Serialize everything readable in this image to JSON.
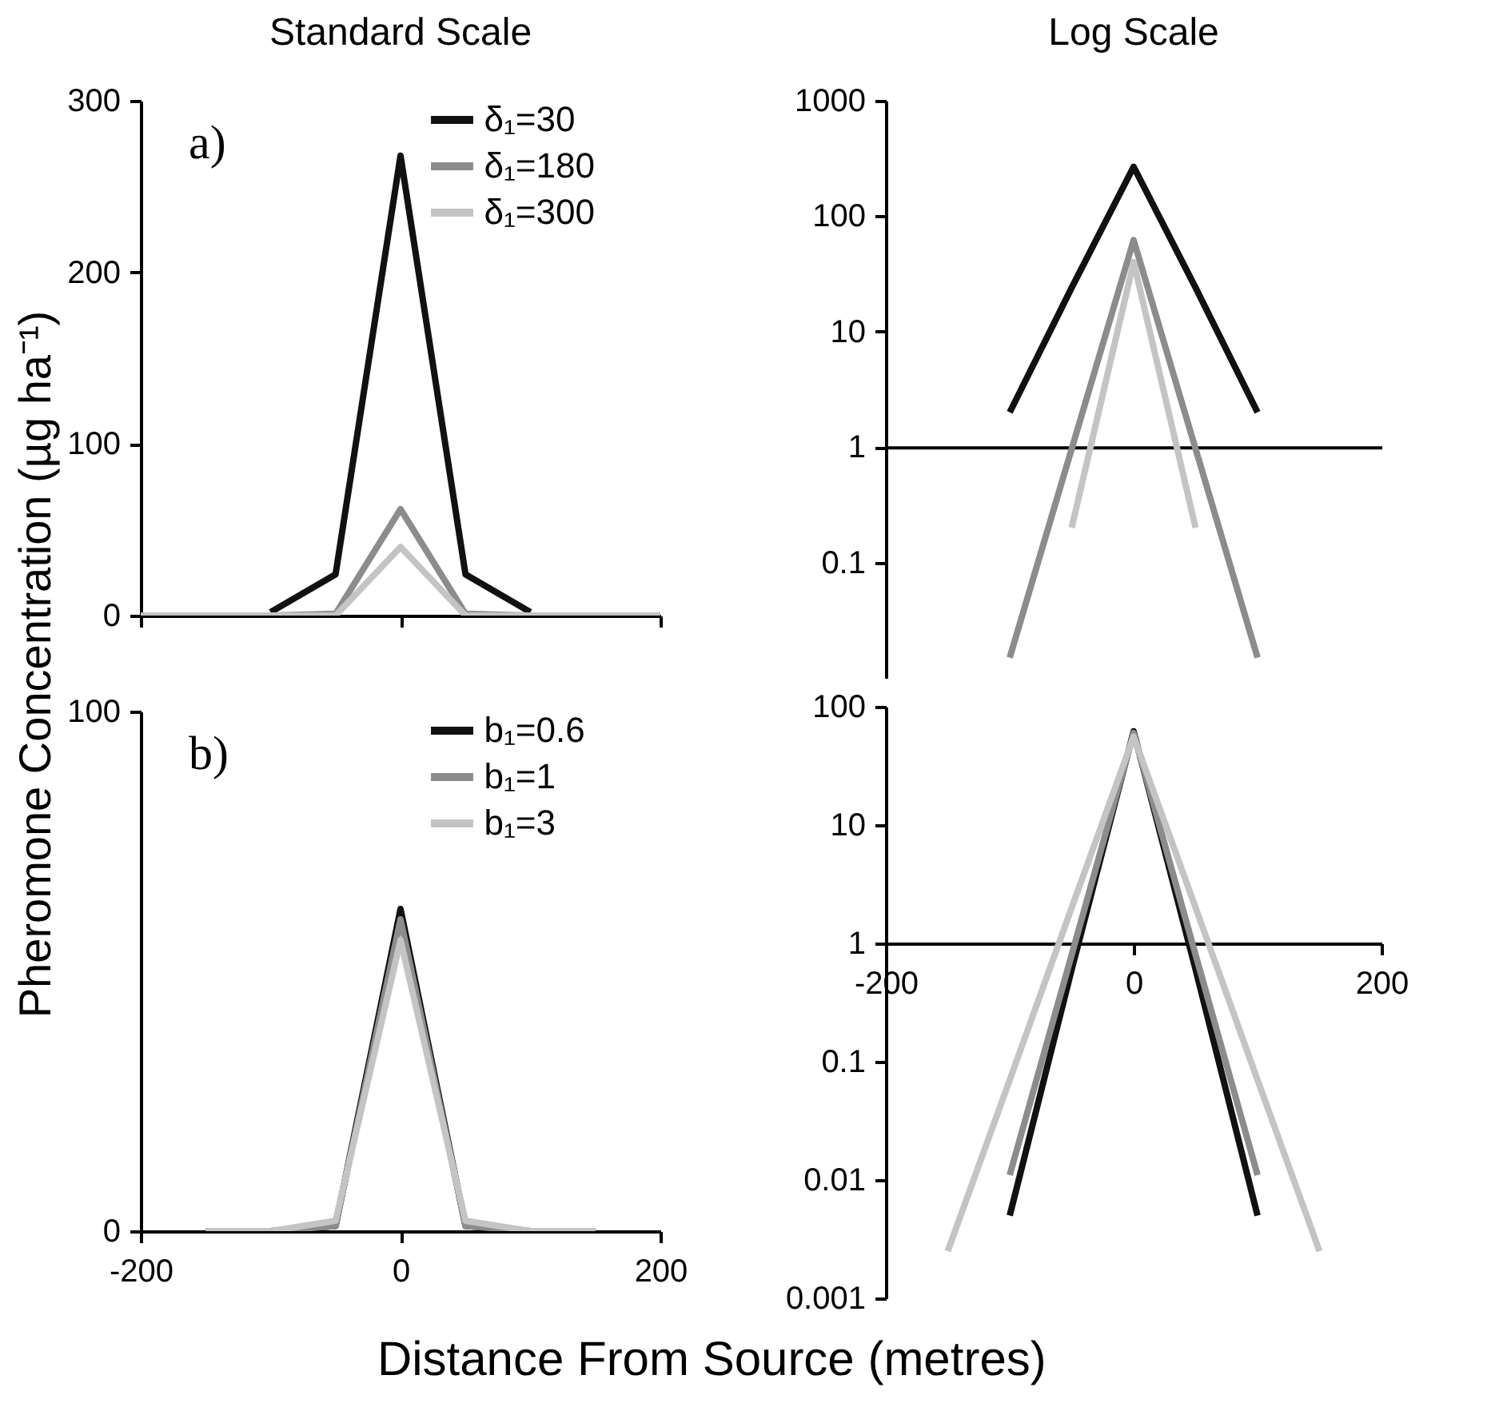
{
  "chart_data": [
    {
      "type": "line",
      "title": "Standard Scale",
      "annotations": [
        "a)"
      ],
      "xlim": [
        -200,
        200
      ],
      "xticks": [
        -200,
        0,
        200
      ],
      "ylim": [
        0,
        300
      ],
      "yticks": [
        0,
        100,
        200,
        300
      ],
      "tick_labels": "y",
      "legend": "top right",
      "series": [
        {
          "name": "δ₁=30",
          "color": "#111111",
          "x": [
            -100,
            -50,
            0,
            50,
            100
          ],
          "values": [
            2,
            24,
            268,
            24,
            2
          ]
        },
        {
          "name": "δ₁=180",
          "color": "#8c8c8c",
          "x": [
            -200,
            -100,
            -50,
            0,
            50,
            100,
            200
          ],
          "values": [
            0,
            0,
            1,
            62,
            1,
            0,
            0
          ]
        },
        {
          "name": "δ₁=300",
          "color": "#c4c4c4",
          "x": [
            -200,
            -50,
            0,
            50,
            200
          ],
          "values": [
            0,
            0,
            40,
            0,
            0
          ]
        }
      ]
    },
    {
      "type": "line",
      "title": "Log Scale",
      "log": true,
      "xlim": [
        -200,
        200
      ],
      "xticks": [
        -200,
        0,
        200
      ],
      "ylim": [
        0.01,
        1000
      ],
      "yticks": [
        0.1,
        1,
        10,
        100,
        1000
      ],
      "tick_labels": "y",
      "series": [
        {
          "color": "#111111",
          "x": [
            -100,
            -50,
            0,
            50,
            100
          ],
          "values": [
            2,
            24,
            268,
            24,
            2
          ]
        },
        {
          "color": "#8c8c8c",
          "x": [
            -100,
            0,
            100
          ],
          "values": [
            0.015,
            62,
            0.015
          ]
        },
        {
          "color": "#c4c4c4",
          "x": [
            -50,
            0,
            50
          ],
          "values": [
            0.2,
            40,
            0.2
          ]
        }
      ]
    },
    {
      "type": "line",
      "annotations": [
        "b)"
      ],
      "xlabel": "Distance From Source (metres)",
      "ylabel": "Pheromone Concentration (µg ha⁻¹)",
      "xlim": [
        -200,
        200
      ],
      "xticks": [
        -200,
        0,
        200
      ],
      "ylim": [
        0,
        100
      ],
      "yticks": [
        0,
        100
      ],
      "legend": "top right",
      "series": [
        {
          "name": "b₁=0.6",
          "color": "#111111",
          "x": [
            -150,
            -100,
            -50,
            0,
            50,
            100,
            150
          ],
          "values": [
            0,
            0,
            1,
            62,
            1,
            0,
            0
          ]
        },
        {
          "name": "b₁=1",
          "color": "#8c8c8c",
          "x": [
            -150,
            -100,
            -50,
            0,
            50,
            100,
            150
          ],
          "values": [
            0,
            0,
            1,
            60,
            1,
            0,
            0
          ]
        },
        {
          "name": "b₁=3",
          "color": "#c4c4c4",
          "x": [
            -150,
            -100,
            -50,
            0,
            50,
            100,
            150
          ],
          "values": [
            0,
            0,
            2,
            56,
            2,
            0,
            0
          ]
        }
      ]
    },
    {
      "type": "line",
      "log": true,
      "xlim": [
        -200,
        200
      ],
      "xticks": [
        -200,
        0,
        200
      ],
      "ylim": [
        0.001,
        100
      ],
      "yticks": [
        0.001,
        0.01,
        0.1,
        1,
        10,
        100
      ],
      "series": [
        {
          "color": "#111111",
          "x": [
            -100,
            -50,
            0,
            50,
            100
          ],
          "values": [
            0.005,
            0.6,
            62,
            0.6,
            0.005
          ]
        },
        {
          "color": "#8c8c8c",
          "x": [
            -100,
            -50,
            0,
            50,
            100
          ],
          "values": [
            0.011,
            0.8,
            60,
            0.8,
            0.011
          ]
        },
        {
          "color": "#c4c4c4",
          "x": [
            -150,
            -100,
            -50,
            0,
            50,
            100,
            150
          ],
          "values": [
            0.0025,
            0.07,
            2,
            56,
            2,
            0.07,
            0.0025
          ]
        }
      ]
    }
  ]
}
